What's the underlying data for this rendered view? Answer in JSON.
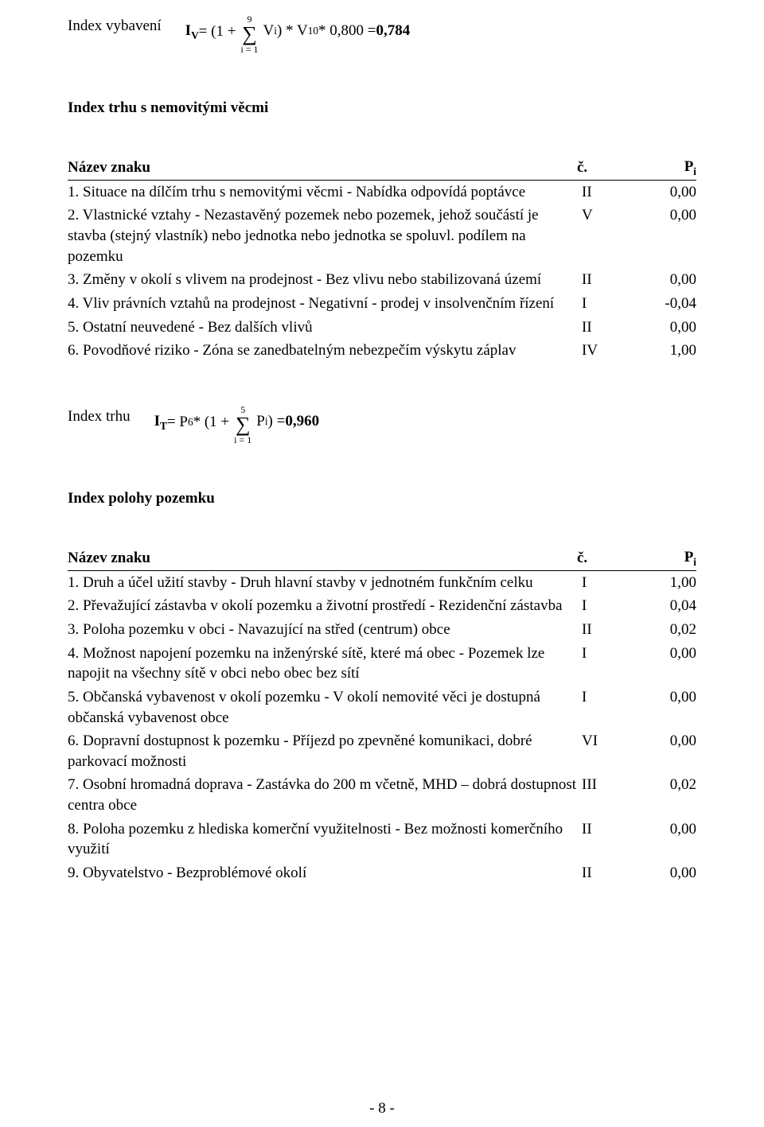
{
  "formula_iv": {
    "lhs_label": "Index vybavení",
    "lhs_symbol": "I",
    "lhs_sub": "V",
    "equals": " = (1 + ",
    "sigma_upper": "9",
    "sigma_lower": "i = 1",
    "inner": " V",
    "inner_sub": "i",
    "after1": ") * V",
    "after1_sub": "10",
    "after2": " * 0,800 = ",
    "result": "0,784"
  },
  "formula_it": {
    "lhs_label": "Index trhu",
    "lhs_symbol": "I",
    "lhs_sub": "T",
    "pre": " = P",
    "pre_sub": "6",
    "mid": " * (1 + ",
    "sigma_upper": "5",
    "sigma_lower": "i = 1",
    "inner": " P",
    "inner_sub": "i",
    "after": ") = ",
    "result": "0,960"
  },
  "section1_title": "Index trhu s nemovitými věcmi",
  "section2_title": "Index polohy pozemku",
  "header_name": "Název znaku",
  "header_c": "č.",
  "header_p_base": "P",
  "header_p_sub": "i",
  "table1": {
    "rows": [
      {
        "name": "1. Situace na dílčím trhu s nemovitými věcmi - Nabídka odpovídá poptávce",
        "c": "II",
        "p": "0,00"
      },
      {
        "name": "2. Vlastnické vztahy - Nezastavěný pozemek nebo pozemek, jehož součástí je stavba (stejný vlastník) nebo jednotka nebo jednotka se spoluvl. podílem na pozemku",
        "c": "V",
        "p": "0,00"
      },
      {
        "name": "3. Změny v okolí s vlivem na prodejnost - Bez vlivu nebo stabilizovaná území",
        "c": "II",
        "p": "0,00"
      },
      {
        "name": "4. Vliv právních vztahů na prodejnost - Negativní - prodej v insolvenčním řízení",
        "c": "I",
        "p": "-0,04"
      },
      {
        "name": "5. Ostatní neuvedené - Bez dalších vlivů",
        "c": "II",
        "p": "0,00"
      },
      {
        "name": "6. Povodňové riziko - Zóna se zanedbatelným nebezpečím výskytu záplav",
        "c": "IV",
        "p": "1,00"
      }
    ]
  },
  "table2": {
    "rows": [
      {
        "name": "1. Druh a účel užití stavby - Druh hlavní stavby v jednotném funkčním celku",
        "c": "I",
        "p": "1,00"
      },
      {
        "name": "2. Převažující zástavba v okolí pozemku a životní prostředí - Rezidenční zástavba",
        "c": "I",
        "p": "0,04"
      },
      {
        "name": "3. Poloha pozemku v obci - Navazující na střed (centrum) obce",
        "c": "II",
        "p": "0,02"
      },
      {
        "name": "4. Možnost napojení pozemku na inženýrské sítě, které má obec - Pozemek lze napojit na všechny sítě v obci nebo obec bez sítí",
        "c": "I",
        "p": "0,00"
      },
      {
        "name": "5. Občanská vybavenost v okolí pozemku - V okolí nemovité věci je dostupná občanská vybavenost obce",
        "c": "I",
        "p": "0,00"
      },
      {
        "name": "6. Dopravní dostupnost k pozemku - Příjezd po zpevněné komunikaci, dobré parkovací možnosti",
        "c": "VI",
        "p": "0,00"
      },
      {
        "name": "7. Osobní hromadná doprava - Zastávka do 200 m včetně, MHD – dobrá dostupnost centra obce",
        "c": "III",
        "p": "0,02"
      },
      {
        "name": "8. Poloha pozemku z hlediska komerční využitelnosti - Bez možnosti komerčního využití",
        "c": "II",
        "p": "0,00"
      },
      {
        "name": "9. Obyvatelstvo - Bezproblémové okolí",
        "c": "II",
        "p": "0,00"
      }
    ]
  },
  "page_number": "- 8 -"
}
